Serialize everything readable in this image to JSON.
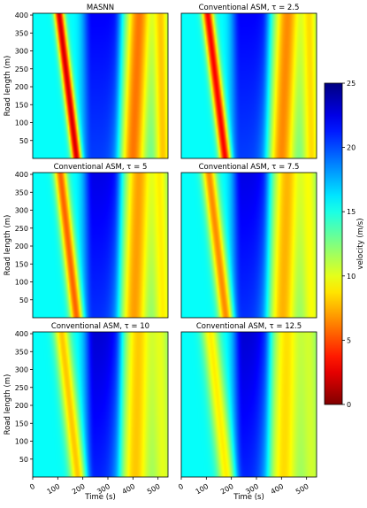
{
  "figure": {
    "ylabel": "Road length (m)",
    "xlabel": "Time (s)",
    "colorbar_label": "velocity (m/s)"
  },
  "chart_data": [
    {
      "type": "heatmap",
      "title": "MASNN",
      "xlabel": "",
      "ylabel": "Road length (m)",
      "xlim": [
        0,
        540
      ],
      "ylim": [
        0,
        405
      ],
      "xticks": [],
      "yticks": [
        50,
        100,
        150,
        200,
        250,
        300,
        350,
        400
      ],
      "grid": false,
      "fields": {
        "background": 15.5,
        "fast_zone": {
          "t": [
            210,
            350
          ],
          "speed": 22
        },
        "slow_waves": [
          {
            "t_top": 105,
            "t_bottom": 175,
            "width": 14,
            "speed": 2
          },
          {
            "t_top": 425,
            "t_bottom": 400,
            "width": 38,
            "speed": 6
          },
          {
            "t_top": 510,
            "t_bottom": 520,
            "width": 26,
            "speed": 8
          }
        ]
      }
    },
    {
      "type": "heatmap",
      "title": "Conventional ASM, τ = 2.5",
      "xlabel": "",
      "ylabel": "",
      "xlim": [
        0,
        540
      ],
      "ylim": [
        0,
        405
      ],
      "xticks": [],
      "yticks": [],
      "grid": false,
      "fields": {
        "background": 15.5,
        "fast_zone": {
          "t": [
            210,
            350
          ],
          "speed": 22
        },
        "slow_waves": [
          {
            "t_top": 105,
            "t_bottom": 175,
            "width": 16,
            "speed": 3
          },
          {
            "t_top": 425,
            "t_bottom": 400,
            "width": 40,
            "speed": 6.5
          },
          {
            "t_top": 510,
            "t_bottom": 520,
            "width": 28,
            "speed": 8.5
          }
        ]
      }
    },
    {
      "type": "heatmap",
      "title": "Conventional ASM, τ = 5",
      "xlabel": "",
      "ylabel": "Road length (m)",
      "xlim": [
        0,
        540
      ],
      "ylim": [
        0,
        405
      ],
      "xticks": [],
      "yticks": [
        50,
        100,
        150,
        200,
        250,
        300,
        350,
        400
      ],
      "grid": false,
      "fields": {
        "background": 15.5,
        "fast_zone": {
          "t": [
            215,
            350
          ],
          "speed": 22.5
        },
        "slow_waves": [
          {
            "t_top": 110,
            "t_bottom": 175,
            "width": 18,
            "speed": 5.5
          },
          {
            "t_top": 425,
            "t_bottom": 405,
            "width": 42,
            "speed": 7
          },
          {
            "t_top": 505,
            "t_bottom": 520,
            "width": 30,
            "speed": 9
          }
        ]
      }
    },
    {
      "type": "heatmap",
      "title": "Conventional ASM, τ = 7.5",
      "xlabel": "",
      "ylabel": "",
      "xlim": [
        0,
        540
      ],
      "ylim": [
        0,
        405
      ],
      "xticks": [],
      "yticks": [],
      "grid": false,
      "fields": {
        "background": 15.5,
        "fast_zone": {
          "t": [
            215,
            350
          ],
          "speed": 22.5
        },
        "slow_waves": [
          {
            "t_top": 110,
            "t_bottom": 178,
            "width": 20,
            "speed": 6.5
          },
          {
            "t_top": 425,
            "t_bottom": 405,
            "width": 44,
            "speed": 7.5
          },
          {
            "t_top": 505,
            "t_bottom": 520,
            "width": 32,
            "speed": 9.5
          }
        ]
      }
    },
    {
      "type": "heatmap",
      "title": "Conventional ASM, τ = 10",
      "xlabel": "Time (s)",
      "ylabel": "Road length (m)",
      "xlim": [
        0,
        540
      ],
      "ylim": [
        0,
        405
      ],
      "xticks": [
        0,
        100,
        200,
        300,
        400,
        500
      ],
      "yticks": [
        50,
        100,
        150,
        200,
        250,
        300,
        350,
        400
      ],
      "grid": false,
      "fields": {
        "background": 15.5,
        "fast_zone": {
          "t": [
            220,
            355
          ],
          "speed": 23
        },
        "slow_waves": [
          {
            "t_top": 115,
            "t_bottom": 180,
            "width": 22,
            "speed": 8
          },
          {
            "t_top": 425,
            "t_bottom": 410,
            "width": 46,
            "speed": 8
          },
          {
            "t_top": 505,
            "t_bottom": 520,
            "width": 34,
            "speed": 10
          }
        ]
      }
    },
    {
      "type": "heatmap",
      "title": "Conventional ASM, τ = 12.5",
      "xlabel": "Time (s)",
      "ylabel": "",
      "xlim": [
        0,
        540
      ],
      "ylim": [
        0,
        405
      ],
      "xticks": [
        0,
        100,
        200,
        300,
        400,
        500
      ],
      "yticks": [],
      "grid": false,
      "fields": {
        "background": 15.5,
        "fast_zone": {
          "t": [
            220,
            355
          ],
          "speed": 23
        },
        "slow_waves": [
          {
            "t_top": 115,
            "t_bottom": 180,
            "width": 24,
            "speed": 9
          },
          {
            "t_top": 425,
            "t_bottom": 410,
            "width": 48,
            "speed": 8.5
          },
          {
            "t_top": 505,
            "t_bottom": 520,
            "width": 36,
            "speed": 10.5
          }
        ]
      }
    },
    {
      "type": "colorbar",
      "label": "velocity (m/s)",
      "range": [
        0,
        25
      ],
      "ticks": [
        0,
        5,
        10,
        15,
        20,
        25
      ],
      "colormap": "jet_r"
    }
  ]
}
